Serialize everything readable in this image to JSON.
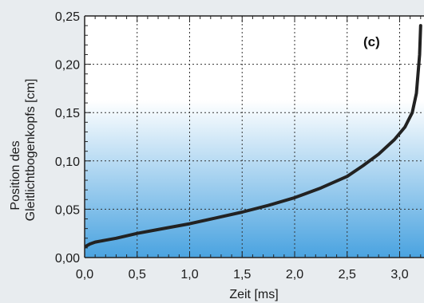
{
  "chart_data": {
    "type": "line",
    "panel_label": "(c)",
    "xlabel": "Zeit [ms]",
    "ylabel_lines": [
      "Position des",
      "Gleitlichtbogenkopfs [cm]"
    ],
    "xlim": [
      0.0,
      3.2
    ],
    "ylim": [
      0.0,
      0.25
    ],
    "x_ticks": [
      "0,0",
      "0,5",
      "1,0",
      "1,5",
      "2,0",
      "2,5",
      "3,0"
    ],
    "y_ticks": [
      "0,00",
      "0,05",
      "0,10",
      "0,15",
      "0,20",
      "0,25"
    ],
    "grid": true,
    "background_gradient": [
      "#ffffff",
      "#4aa3e0"
    ],
    "line_color": "#222222",
    "series": [
      {
        "x": [
          0.0,
          0.05,
          0.1,
          0.2,
          0.3,
          0.5,
          0.75,
          1.0,
          1.25,
          1.5,
          1.75,
          2.0,
          2.25,
          2.5,
          2.65,
          2.8,
          2.95,
          3.05,
          3.12,
          3.16,
          3.19,
          3.2
        ],
        "y": [
          0.011,
          0.014,
          0.016,
          0.018,
          0.02,
          0.025,
          0.03,
          0.035,
          0.041,
          0.047,
          0.054,
          0.062,
          0.072,
          0.084,
          0.095,
          0.107,
          0.122,
          0.135,
          0.15,
          0.17,
          0.21,
          0.24
        ]
      }
    ]
  }
}
